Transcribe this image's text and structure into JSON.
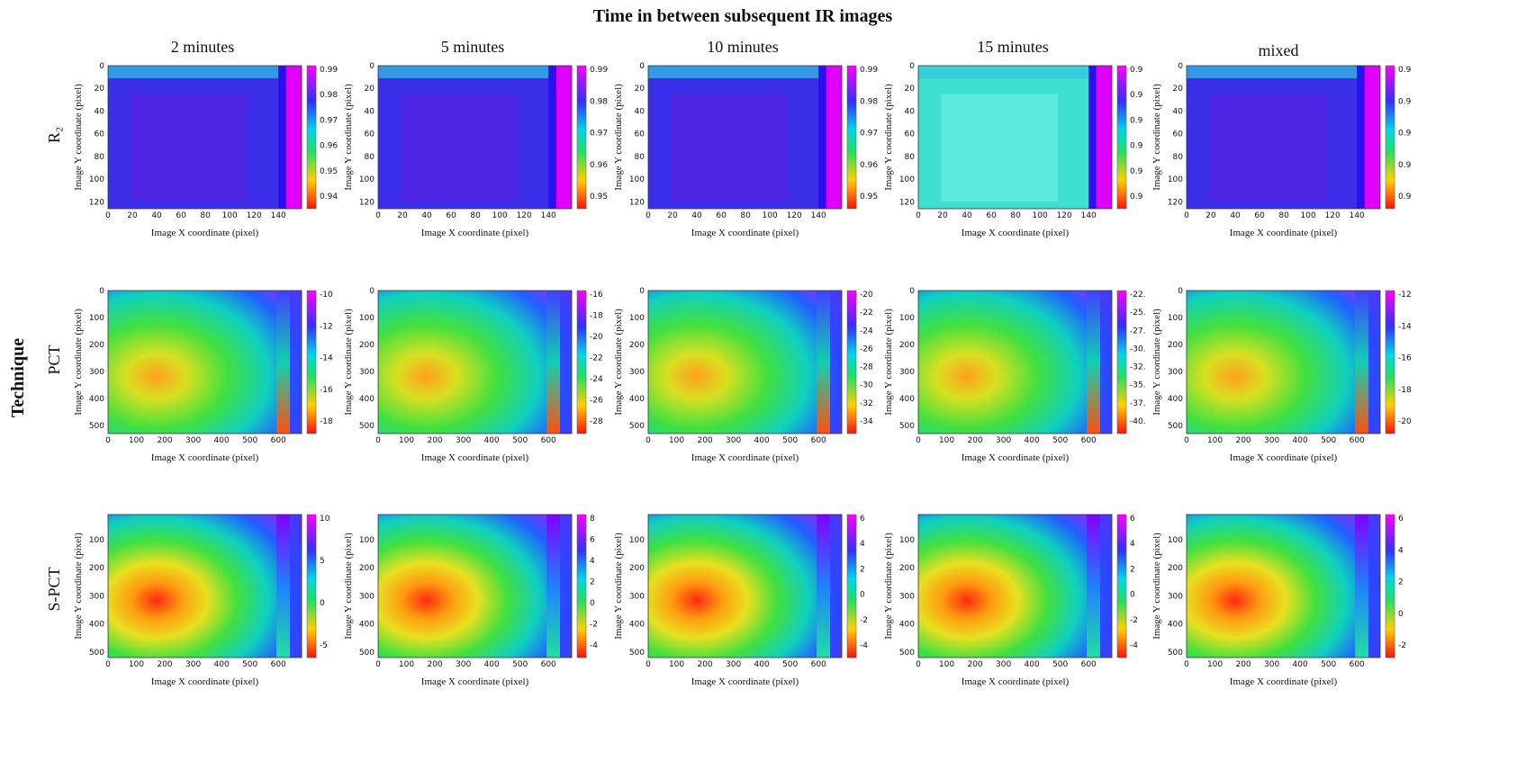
{
  "title": "Time in between subsequent IR images",
  "column_headers": [
    "2 minutes",
    "5 minutes",
    "10 minutes",
    "15 minutes",
    "mixed"
  ],
  "row_group_label": "Technique",
  "x_label": "Image X coordinate (pixel)",
  "y_label": "Image Y coordinate (pixel)",
  "rows": [
    {
      "label": "R₂",
      "x_ticks": [
        "0",
        "20",
        "40",
        "60",
        "80",
        "100",
        "120",
        "140"
      ],
      "y_ticks": [
        "0",
        "20",
        "40",
        "60",
        "80",
        "100",
        "120"
      ],
      "colorbar_ticks": [
        [
          "0.99",
          "0.98",
          "0.97",
          "0.96",
          "0.95",
          "0.94"
        ],
        [
          "0.99",
          "0.98",
          "0.97",
          "0.96",
          "0.95"
        ],
        [
          "0.99",
          "0.98",
          "0.97",
          "0.96",
          "0.95"
        ],
        [
          "0.9",
          "0.9",
          "0.9",
          "0.9",
          "0.9",
          "0.9"
        ],
        [
          "0.9",
          "0.9",
          "0.9",
          "0.9",
          "0.9"
        ]
      ]
    },
    {
      "label": "PCT",
      "x_ticks": [
        "0",
        "100",
        "200",
        "300",
        "400",
        "500",
        "600"
      ],
      "y_ticks": [
        "0",
        "100",
        "200",
        "300",
        "400",
        "500"
      ],
      "colorbar_ticks": [
        [
          "-10",
          "-12",
          "-14",
          "-16",
          "-18"
        ],
        [
          "-16",
          "-18",
          "-20",
          "-22",
          "-24",
          "-26",
          "-28"
        ],
        [
          "-20",
          "-22",
          "-24",
          "-26",
          "-28",
          "-30",
          "-32",
          "-34"
        ],
        [
          "-22.",
          "-25.",
          "-27.",
          "-30.",
          "-32.",
          "-35.",
          "-37.",
          "-40."
        ],
        [
          "-12",
          "-14",
          "-16",
          "-18",
          "-20"
        ]
      ]
    },
    {
      "label": "S-PCT",
      "x_ticks": [
        "0",
        "100",
        "200",
        "300",
        "400",
        "500",
        "600"
      ],
      "y_ticks": [
        "100",
        "200",
        "300",
        "400",
        "500"
      ],
      "colorbar_ticks": [
        [
          "10",
          "5",
          "0",
          "-5"
        ],
        [
          "8",
          "6",
          "4",
          "2",
          "0",
          "-2",
          "-4"
        ],
        [
          "6",
          "4",
          "2",
          "0",
          "-2",
          "-4"
        ],
        [
          "6",
          "4",
          "2",
          "0",
          "-2",
          "-4"
        ],
        [
          "6",
          "4",
          "2",
          "0",
          "-2"
        ]
      ]
    }
  ]
}
